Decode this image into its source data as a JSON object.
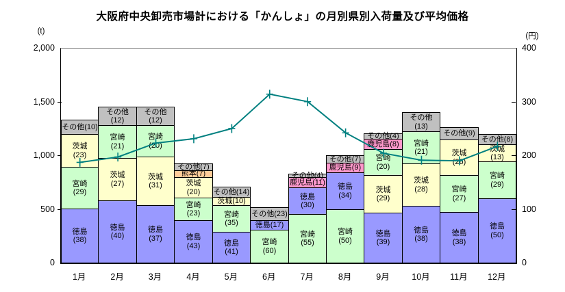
{
  "title": "大阪府中央卸売市場計における「かんしょ」の月別県別入荷量及び平均価格",
  "chart_data": {
    "type": "stacked-bar+line",
    "title": "大阪府中央卸売市場計における「かんしょ」の月別県別入荷量及び平均価格",
    "categories": [
      "1月",
      "2月",
      "3月",
      "4月",
      "5月",
      "6月",
      "7月",
      "8月",
      "9月",
      "10月",
      "11月",
      "12月"
    ],
    "y_left": {
      "unit": "(t)",
      "range": [
        0,
        2000
      ],
      "tick_labels": [
        "2,000",
        "1,500",
        "1,000",
        "500",
        "0"
      ],
      "tick_values": [
        2000,
        1500,
        1000,
        500,
        0
      ]
    },
    "y_right": {
      "unit": "(円)",
      "range": [
        0,
        400
      ],
      "tick_labels": [
        "400",
        "300",
        "200",
        "100",
        "0"
      ],
      "tick_values": [
        400,
        300,
        200,
        100,
        0
      ]
    },
    "grid": false,
    "legend": "none (labels drawn inside bar segments)",
    "prefectures": [
      {
        "name": "徳島",
        "id": "tokushima",
        "color": "#9999FF"
      },
      {
        "name": "宮崎",
        "id": "miyazaki",
        "color": "#CCFFCC"
      },
      {
        "name": "茨城",
        "id": "ibaraki",
        "color": "#FFFFCC"
      },
      {
        "name": "熊本",
        "id": "kumamoto",
        "color": "#FFCC99"
      },
      {
        "name": "鹿児島",
        "id": "kagoshima",
        "color": "#FF99CC"
      },
      {
        "name": "その他",
        "id": "others",
        "color": "#C0C0C0"
      }
    ],
    "bars": [
      {
        "month": "1月",
        "total_t_est": 1340,
        "segments": [
          {
            "name": "徳島",
            "pct": 38
          },
          {
            "name": "宮崎",
            "pct": 29
          },
          {
            "name": "茨城",
            "pct": 23
          },
          {
            "name": "その他",
            "pct": 10
          }
        ]
      },
      {
        "month": "2月",
        "total_t_est": 1460,
        "segments": [
          {
            "name": "徳島",
            "pct": 40
          },
          {
            "name": "茨城",
            "pct": 27
          },
          {
            "name": "宮崎",
            "pct": 21
          },
          {
            "name": "その他",
            "pct": 12
          }
        ]
      },
      {
        "month": "3月",
        "total_t_est": 1460,
        "segments": [
          {
            "name": "徳島",
            "pct": 37
          },
          {
            "name": "茨城",
            "pct": 31
          },
          {
            "name": "宮崎",
            "pct": 20
          },
          {
            "name": "その他",
            "pct": 12
          }
        ]
      },
      {
        "month": "4月",
        "total_t_est": 930,
        "segments": [
          {
            "name": "徳島",
            "pct": 43
          },
          {
            "name": "宮崎",
            "pct": 23
          },
          {
            "name": "茨城",
            "pct": 20
          },
          {
            "name": "熊本",
            "pct": 7
          },
          {
            "name": "その他",
            "pct": 7
          }
        ]
      },
      {
        "month": "5月",
        "total_t_est": 715,
        "segments": [
          {
            "name": "徳島",
            "pct": 41
          },
          {
            "name": "宮崎",
            "pct": 35
          },
          {
            "name": "茨城",
            "pct": 10
          },
          {
            "name": "その他",
            "pct": 14
          }
        ]
      },
      {
        "month": "6月",
        "total_t_est": 520,
        "segments": [
          {
            "name": "宮崎",
            "pct": 60
          },
          {
            "name": "徳島",
            "pct": 17
          },
          {
            "name": "その他",
            "pct": 23
          }
        ]
      },
      {
        "month": "7月",
        "total_t_est": 835,
        "segments": [
          {
            "name": "宮崎",
            "pct": 55
          },
          {
            "name": "徳島",
            "pct": 30
          },
          {
            "name": "鹿児島",
            "pct": 11
          },
          {
            "name": "その他",
            "pct": 4
          }
        ]
      },
      {
        "month": "8月",
        "total_t_est": 1005,
        "segments": [
          {
            "name": "宮崎",
            "pct": 50
          },
          {
            "name": "徳島",
            "pct": 34
          },
          {
            "name": "鹿児島",
            "pct": 9
          },
          {
            "name": "その他",
            "pct": 7
          }
        ]
      },
      {
        "month": "9月",
        "total_t_est": 1210,
        "segments": [
          {
            "name": "徳島",
            "pct": 39
          },
          {
            "name": "茨城",
            "pct": 29
          },
          {
            "name": "宮崎",
            "pct": 20
          },
          {
            "name": "鹿児島",
            "pct": 8
          },
          {
            "name": "その他",
            "pct": 4
          }
        ]
      },
      {
        "month": "10月",
        "total_t_est": 1410,
        "segments": [
          {
            "name": "徳島",
            "pct": 38
          },
          {
            "name": "茨城",
            "pct": 28
          },
          {
            "name": "宮崎",
            "pct": 21
          },
          {
            "name": "その他",
            "pct": 13
          }
        ]
      },
      {
        "month": "11月",
        "total_t_est": 1265,
        "segments": [
          {
            "name": "徳島",
            "pct": 38
          },
          {
            "name": "宮崎",
            "pct": 27
          },
          {
            "name": "茨城",
            "pct": 26
          },
          {
            "name": "その他",
            "pct": 9
          }
        ]
      },
      {
        "month": "12月",
        "total_t_est": 1205,
        "segments": [
          {
            "name": "徳島",
            "pct": 50
          },
          {
            "name": "宮崎",
            "pct": 29
          },
          {
            "name": "茨城",
            "pct": 13
          },
          {
            "name": "その他",
            "pct": 8
          }
        ]
      }
    ],
    "price_line": {
      "name": "平均価格",
      "unit": "円",
      "color": "#008080",
      "marker": "plus-cross",
      "values_yen_est": [
        188,
        198,
        224,
        232,
        251,
        315,
        301,
        243,
        205,
        192,
        191,
        218
      ]
    }
  }
}
